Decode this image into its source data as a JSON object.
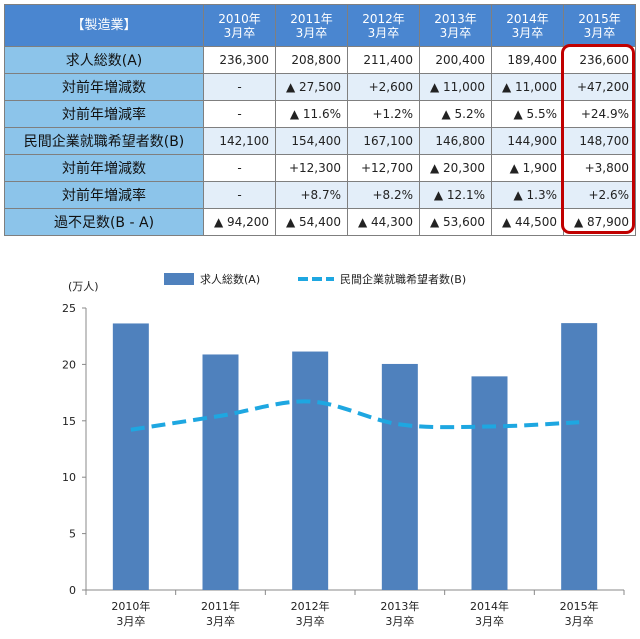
{
  "table": {
    "corner": "【製造業】",
    "columns": [
      "2010年\n3月卒",
      "2011年\n3月卒",
      "2012年\n3月卒",
      "2013年\n3月卒",
      "2014年\n3月卒",
      "2015年\n3月卒"
    ],
    "rows": [
      {
        "label": "求人総数(A)",
        "cells": [
          "236,300",
          "208,800",
          "211,400",
          "200,400",
          "189,400",
          "236,600"
        ]
      },
      {
        "label": "対前年増減数",
        "cells": [
          "-",
          "▲ 27,500",
          "+2,600",
          "▲ 11,000",
          "▲ 11,000",
          "+47,200"
        ]
      },
      {
        "label": "対前年増減率",
        "cells": [
          "-",
          "▲ 11.6%",
          "+1.2%",
          "▲ 5.2%",
          "▲ 5.5%",
          "+24.9%"
        ]
      },
      {
        "label": "民間企業就職希望者数(B)",
        "cells": [
          "142,100",
          "154,400",
          "167,100",
          "146,800",
          "144,900",
          "148,700"
        ]
      },
      {
        "label": "対前年増減数",
        "cells": [
          "-",
          "+12,300",
          "+12,700",
          "▲ 20,300",
          "▲ 1,900",
          "+3,800"
        ]
      },
      {
        "label": "対前年増減率",
        "cells": [
          "-",
          "+8.7%",
          "+8.2%",
          "▲ 12.1%",
          "▲ 1.3%",
          "+2.6%"
        ]
      },
      {
        "label": "過不足数(B - A)",
        "cells": [
          "▲ 94,200",
          "▲ 54,400",
          "▲ 44,300",
          "▲ 53,600",
          "▲ 44,500",
          "▲ 87,900"
        ]
      }
    ],
    "highlight_color": "#c00000"
  },
  "chart_data": {
    "type": "bar",
    "unit_label": "(万人)",
    "categories": [
      "2010年\n3月卒",
      "2011年\n3月卒",
      "2012年\n3月卒",
      "2013年\n3月卒",
      "2014年\n3月卒",
      "2015年\n3月卒"
    ],
    "series": [
      {
        "name": "求人総数(A)",
        "type": "bar",
        "color": "#4f81bd",
        "values": [
          23.63,
          20.88,
          21.14,
          20.04,
          18.94,
          23.66
        ]
      },
      {
        "name": "民間企業就職希望者数(B)",
        "type": "line",
        "style": "dashed",
        "color": "#1ea7e1",
        "values": [
          14.21,
          15.44,
          16.71,
          14.68,
          14.49,
          14.87
        ]
      }
    ],
    "ylim": [
      0,
      25
    ],
    "yticks": [
      0,
      5,
      10,
      15,
      20,
      25
    ],
    "legend_position": "top"
  }
}
